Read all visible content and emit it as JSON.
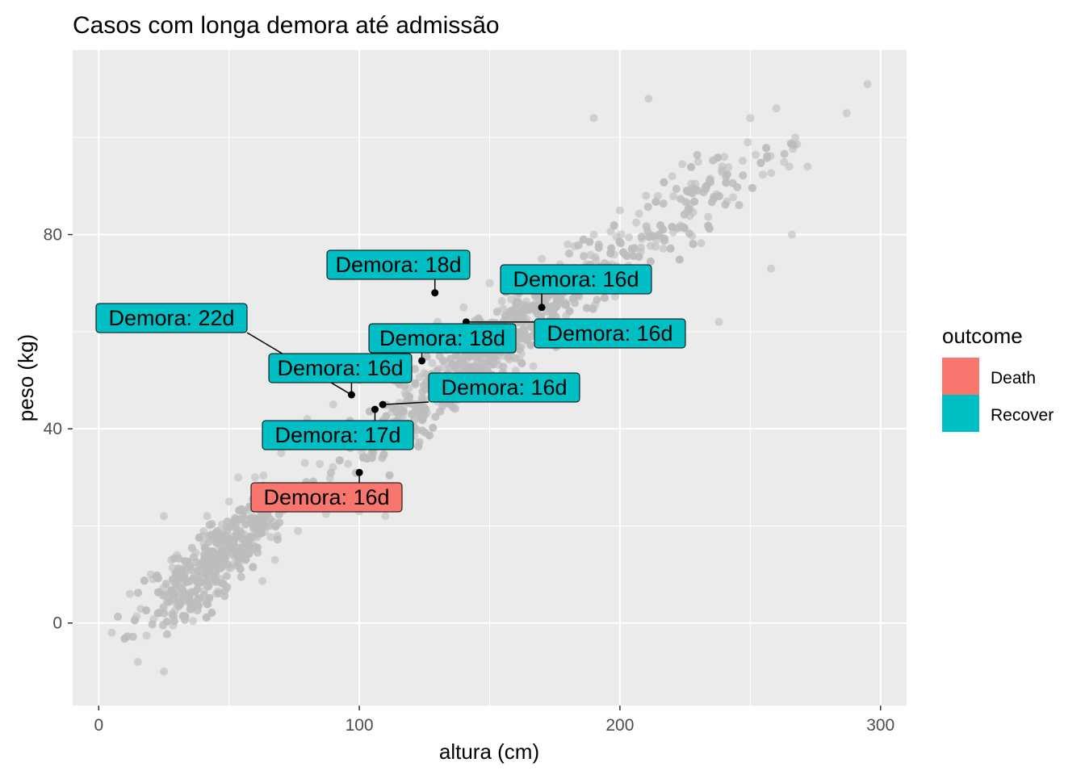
{
  "chart_data": {
    "type": "scatter",
    "title": "Casos com longa demora até admissão",
    "xlabel": "altura (cm)",
    "ylabel": "peso (kg)",
    "xlim": [
      -10,
      310
    ],
    "ylim": [
      -17,
      118
    ],
    "x_ticks": [
      0,
      100,
      200,
      300
    ],
    "y_ticks": [
      0,
      40,
      80
    ],
    "x_minor": [
      50,
      150,
      250
    ],
    "y_minor": [
      20,
      60,
      100
    ],
    "grid": true,
    "panel_background": "#ebebeb",
    "grid_color": "#ffffff",
    "background_points": {
      "color": "#bdbdbd",
      "alpha": 0.6,
      "approx_count": 2200,
      "trend": "peso aumenta com altura",
      "sample_points": [
        [
          5,
          -2
        ],
        [
          12,
          6
        ],
        [
          15,
          -8
        ],
        [
          25,
          -10
        ],
        [
          20,
          10
        ],
        [
          30,
          14
        ],
        [
          25,
          22
        ],
        [
          40,
          18
        ],
        [
          50,
          25
        ],
        [
          60,
          30
        ],
        [
          70,
          35
        ],
        [
          80,
          42
        ],
        [
          90,
          45
        ],
        [
          100,
          50
        ],
        [
          110,
          55
        ],
        [
          120,
          60
        ],
        [
          130,
          62
        ],
        [
          140,
          65
        ],
        [
          150,
          70
        ],
        [
          160,
          72
        ],
        [
          170,
          75
        ],
        [
          180,
          78
        ],
        [
          190,
          80
        ],
        [
          200,
          85
        ],
        [
          210,
          88
        ],
        [
          220,
          92
        ],
        [
          230,
          95
        ],
        [
          240,
          96
        ],
        [
          250,
          104
        ],
        [
          260,
          106
        ],
        [
          287,
          105
        ],
        [
          295,
          111
        ],
        [
          211,
          108
        ],
        [
          190,
          104
        ],
        [
          265,
          94
        ],
        [
          272,
          94
        ],
        [
          258,
          73
        ],
        [
          266,
          80
        ],
        [
          238,
          62
        ],
        [
          160,
          52
        ],
        [
          170,
          48
        ],
        [
          100,
          23
        ],
        [
          110,
          22
        ]
      ]
    },
    "highlight_points": [
      {
        "x": 97,
        "y": 47,
        "outcome": "Recover",
        "label": "Demora: 16d"
      },
      {
        "x": 129,
        "y": 68,
        "outcome": "Recover",
        "label": "Demora: 18d"
      },
      {
        "x": 170,
        "y": 65,
        "outcome": "Recover",
        "label": "Demora: 16d"
      },
      {
        "x": 141,
        "y": 62,
        "outcome": "Recover",
        "label": "Demora: 16d"
      },
      {
        "x": 124,
        "y": 54,
        "outcome": "Recover",
        "label": "Demora: 18d"
      },
      {
        "x": 109,
        "y": 45,
        "outcome": "Recover",
        "label": "Demora: 16d"
      },
      {
        "x": 106,
        "y": 44,
        "outcome": "Recover",
        "label": "Demora: 17d"
      },
      {
        "x": 100,
        "y": 31,
        "outcome": "Death",
        "label": "Demora: 16d"
      },
      {
        "x": 97,
        "y": 47,
        "outcome": "Recover",
        "label": "Demora: 22d"
      }
    ],
    "legend": {
      "title": "outcome",
      "position": "right",
      "items": [
        {
          "label": "Death",
          "color": "#f8766d"
        },
        {
          "label": "Recover",
          "color": "#00bfc4"
        }
      ]
    }
  }
}
